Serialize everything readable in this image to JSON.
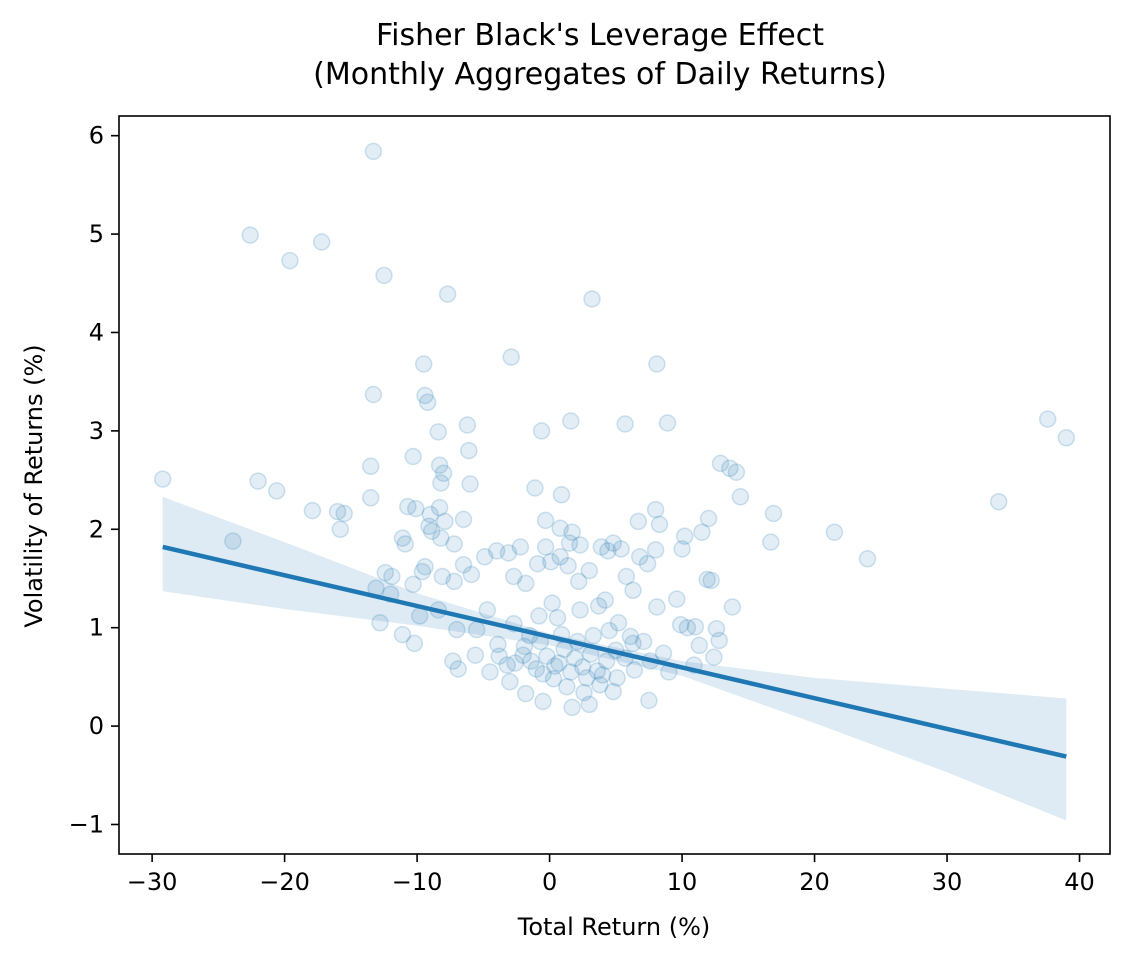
{
  "colors": {
    "series": "#1f77b4",
    "band": "#1f77b4",
    "axis": "#000000",
    "background": "#ffffff"
  },
  "chart_data": {
    "type": "scatter",
    "title": "Fisher Black's Leverage Effect",
    "subtitle": "(Monthly Aggregates of Daily Returns)",
    "xlabel": "Total Return (%)",
    "ylabel": "Volatility of Returns (%)",
    "xlim": [
      -32.5,
      42.3
    ],
    "ylim": [
      -1.3,
      6.2
    ],
    "xticks": [
      -30,
      -20,
      -10,
      0,
      10,
      20,
      30,
      40
    ],
    "yticks": [
      -1,
      0,
      1,
      2,
      3,
      4,
      5,
      6
    ],
    "xtick_labels": [
      "−30",
      "−20",
      "−10",
      "0",
      "10",
      "20",
      "30",
      "40"
    ],
    "ytick_labels": [
      "−1",
      "0",
      "1",
      "2",
      "3",
      "4",
      "5",
      "6"
    ],
    "grid": false,
    "legend": "none",
    "points": [
      [
        -13.3,
        5.84
      ],
      [
        -22.6,
        4.99
      ],
      [
        -17.2,
        4.92
      ],
      [
        -19.6,
        4.73
      ],
      [
        -12.5,
        4.58
      ],
      [
        -7.7,
        4.39
      ],
      [
        3.2,
        4.34
      ],
      [
        -2.9,
        3.75
      ],
      [
        -9.5,
        3.68
      ],
      [
        8.1,
        3.68
      ],
      [
        -13.3,
        3.37
      ],
      [
        -9.4,
        3.36
      ],
      [
        -9.2,
        3.29
      ],
      [
        -6.2,
        3.06
      ],
      [
        5.7,
        3.07
      ],
      [
        8.9,
        3.08
      ],
      [
        1.6,
        3.1
      ],
      [
        -0.6,
        3.0
      ],
      [
        -8.4,
        2.99
      ],
      [
        -6.1,
        2.8
      ],
      [
        -10.3,
        2.74
      ],
      [
        -13.5,
        2.64
      ],
      [
        -8.3,
        2.65
      ],
      [
        -8.0,
        2.57
      ],
      [
        -8.2,
        2.47
      ],
      [
        -6.0,
        2.46
      ],
      [
        -22.0,
        2.49
      ],
      [
        -29.2,
        2.51
      ],
      [
        -20.6,
        2.39
      ],
      [
        -1.1,
        2.42
      ],
      [
        0.9,
        2.35
      ],
      [
        -13.5,
        2.32
      ],
      [
        -10.7,
        2.23
      ],
      [
        -10.1,
        2.21
      ],
      [
        -8.3,
        2.22
      ],
      [
        -17.9,
        2.19
      ],
      [
        -16.0,
        2.18
      ],
      [
        -15.5,
        2.16
      ],
      [
        -9.0,
        2.15
      ],
      [
        -7.9,
        2.08
      ],
      [
        -6.5,
        2.1
      ],
      [
        -15.8,
        2.0
      ],
      [
        -9.1,
        2.03
      ],
      [
        -8.9,
        1.98
      ],
      [
        -11.1,
        1.91
      ],
      [
        -10.9,
        1.85
      ],
      [
        -8.2,
        1.91
      ],
      [
        -7.2,
        1.85
      ],
      [
        -23.9,
        1.88
      ],
      [
        -12.4,
        1.56
      ],
      [
        -11.9,
        1.52
      ],
      [
        -9.6,
        1.57
      ],
      [
        -9.4,
        1.62
      ],
      [
        -8.1,
        1.52
      ],
      [
        -7.2,
        1.47
      ],
      [
        -5.9,
        1.54
      ],
      [
        -6.5,
        1.64
      ],
      [
        -13.1,
        1.4
      ],
      [
        -12.0,
        1.34
      ],
      [
        -10.3,
        1.44
      ],
      [
        -9.8,
        1.12
      ],
      [
        -8.4,
        1.18
      ],
      [
        -7.0,
        0.98
      ],
      [
        -12.8,
        1.05
      ],
      [
        -11.1,
        0.93
      ],
      [
        -10.2,
        0.84
      ],
      [
        -7.3,
        0.66
      ],
      [
        -6.9,
        0.58
      ],
      [
        -5.6,
        0.72
      ],
      [
        -4.5,
        0.55
      ],
      [
        -3.0,
        0.45
      ],
      [
        -1.8,
        0.33
      ],
      [
        -0.5,
        0.25
      ],
      [
        -4.9,
        1.72
      ],
      [
        -4.0,
        1.78
      ],
      [
        -3.1,
        1.76
      ],
      [
        -2.2,
        1.82
      ],
      [
        -2.7,
        1.52
      ],
      [
        -1.8,
        1.45
      ],
      [
        -0.9,
        1.65
      ],
      [
        -0.3,
        1.82
      ],
      [
        -0.3,
        2.09
      ],
      [
        0.8,
        2.01
      ],
      [
        1.7,
        1.97
      ],
      [
        1.5,
        1.86
      ],
      [
        2.3,
        1.84
      ],
      [
        0.8,
        1.72
      ],
      [
        0.1,
        1.67
      ],
      [
        1.4,
        1.63
      ],
      [
        3.0,
        1.58
      ],
      [
        2.2,
        1.47
      ],
      [
        4.4,
        1.78
      ],
      [
        3.9,
        1.82
      ],
      [
        4.8,
        1.86
      ],
      [
        5.4,
        1.8
      ],
      [
        5.8,
        1.52
      ],
      [
        6.8,
        1.72
      ],
      [
        7.4,
        1.65
      ],
      [
        6.3,
        1.38
      ],
      [
        8.0,
        1.79
      ],
      [
        8.0,
        2.2
      ],
      [
        8.3,
        2.05
      ],
      [
        6.7,
        2.08
      ],
      [
        10.2,
        1.93
      ],
      [
        10.0,
        1.8
      ],
      [
        11.5,
        1.97
      ],
      [
        12.0,
        2.11
      ],
      [
        11.9,
        1.49
      ],
      [
        12.2,
        1.48
      ],
      [
        12.9,
        2.67
      ],
      [
        13.6,
        2.62
      ],
      [
        14.1,
        2.58
      ],
      [
        14.4,
        2.33
      ],
      [
        16.7,
        1.87
      ],
      [
        16.9,
        2.16
      ],
      [
        21.5,
        1.97
      ],
      [
        24.0,
        1.7
      ],
      [
        33.9,
        2.28
      ],
      [
        37.6,
        3.12
      ],
      [
        39.0,
        2.93
      ],
      [
        13.8,
        1.21
      ],
      [
        9.6,
        1.29
      ],
      [
        8.1,
        1.21
      ],
      [
        9.9,
        1.03
      ],
      [
        10.4,
        1.0
      ],
      [
        11.0,
        1.01
      ],
      [
        12.6,
        0.99
      ],
      [
        12.8,
        0.87
      ],
      [
        11.3,
        0.82
      ],
      [
        10.9,
        0.62
      ],
      [
        12.4,
        0.7
      ],
      [
        9.0,
        0.55
      ],
      [
        7.5,
        0.26
      ],
      [
        4.8,
        0.35
      ],
      [
        3.0,
        0.22
      ],
      [
        1.7,
        0.19
      ],
      [
        6.3,
        0.84
      ],
      [
        5.2,
        1.05
      ],
      [
        3.7,
        1.22
      ],
      [
        2.3,
        1.18
      ],
      [
        4.2,
        1.28
      ],
      [
        -4.7,
        1.18
      ],
      [
        -5.5,
        0.98
      ],
      [
        -3.9,
        0.83
      ],
      [
        -2.7,
        1.04
      ],
      [
        -1.5,
        0.92
      ],
      [
        -0.8,
        1.12
      ],
      [
        0.2,
        1.25
      ],
      [
        0.6,
        1.1
      ],
      [
        -2.0,
        0.72
      ],
      [
        -3.2,
        0.62
      ],
      [
        -1.0,
        0.58
      ],
      [
        0.3,
        0.48
      ],
      [
        1.3,
        0.4
      ],
      [
        2.6,
        0.34
      ],
      [
        3.8,
        0.42
      ],
      [
        5.1,
        0.49
      ],
      [
        6.4,
        0.57
      ],
      [
        7.6,
        0.66
      ],
      [
        8.6,
        0.74
      ],
      [
        -0.2,
        0.71
      ],
      [
        0.7,
        0.64
      ],
      [
        1.1,
        0.78
      ],
      [
        1.9,
        0.69
      ],
      [
        2.5,
        0.6
      ],
      [
        3.1,
        0.73
      ],
      [
        3.6,
        0.56
      ],
      [
        4.3,
        0.66
      ],
      [
        5.0,
        0.77
      ],
      [
        5.7,
        0.69
      ],
      [
        -1.4,
        0.66
      ],
      [
        -0.5,
        0.53
      ],
      [
        0.4,
        0.61
      ],
      [
        1.6,
        0.55
      ],
      [
        2.8,
        0.49
      ],
      [
        4.0,
        0.52
      ],
      [
        2.1,
        0.86
      ],
      [
        3.3,
        0.92
      ],
      [
        4.5,
        0.97
      ],
      [
        -0.7,
        0.86
      ],
      [
        0.9,
        0.93
      ],
      [
        -1.9,
        0.81
      ],
      [
        6.1,
        0.91
      ],
      [
        7.1,
        0.86
      ],
      [
        -2.6,
        0.64
      ],
      [
        -3.8,
        0.71
      ]
    ],
    "regression": {
      "x": [
        -29.2,
        39.0
      ],
      "y": [
        1.82,
        -0.31
      ],
      "band_x": [
        -29.2,
        -20,
        -10,
        0,
        10,
        20,
        30,
        39.0
      ],
      "band_upper": [
        2.33,
        1.87,
        1.35,
        0.94,
        0.66,
        0.49,
        0.38,
        0.28
      ],
      "band_lower": [
        1.37,
        1.19,
        1.02,
        0.82,
        0.51,
        0.03,
        -0.47,
        -0.96
      ]
    }
  }
}
